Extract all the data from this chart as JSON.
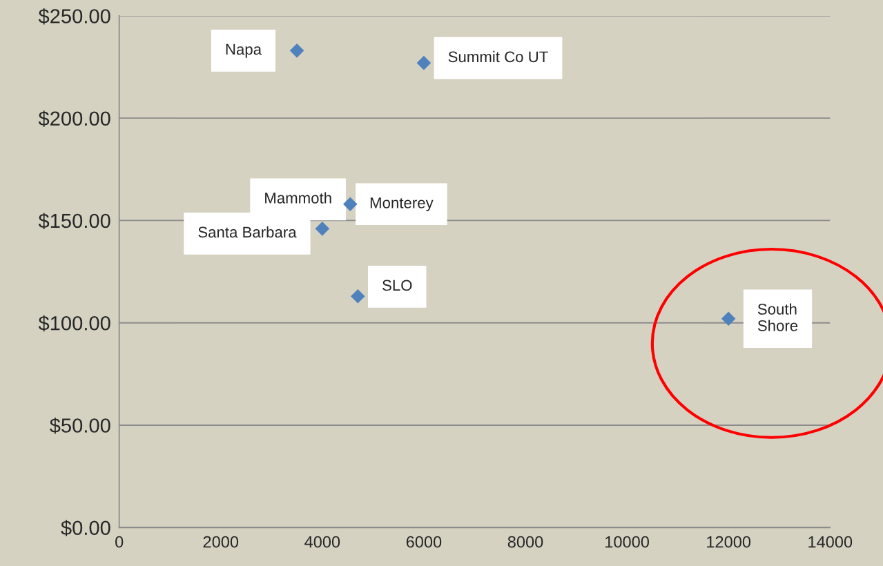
{
  "chart_data": {
    "type": "scatter",
    "x": [
      3500,
      6000,
      4550,
      4000,
      4700,
      12000
    ],
    "values": [
      233,
      227,
      158,
      146,
      113,
      102
    ],
    "color": "#4f81bd",
    "marker": "diamond",
    "xlim": [
      0,
      14000
    ],
    "xticks": [
      0,
      2000,
      4000,
      6000,
      8000,
      10000,
      12000,
      14000
    ],
    "ylim": [
      0,
      250
    ],
    "yticks": [
      {
        "value": 0,
        "label": "$0.00"
      },
      {
        "value": 50,
        "label": "$50.00"
      },
      {
        "value": 100,
        "label": "$100.00"
      },
      {
        "value": 150,
        "label": "$150.00"
      },
      {
        "value": 200,
        "label": "$200.00"
      },
      {
        "value": 250,
        "label": "$250.00"
      }
    ],
    "grid": "y",
    "annotations": [
      {
        "text": "Napa",
        "x": 3500,
        "y": 233
      },
      {
        "text": "Summit Co UT",
        "x": 6000,
        "y": 227
      },
      {
        "text": "Monterey",
        "x": 4550,
        "y": 158
      },
      {
        "text": "Mammoth",
        "x": 4550,
        "y": 158
      },
      {
        "text": "Santa Barbara",
        "x": 4000,
        "y": 146
      },
      {
        "text": "SLO",
        "x": 4700,
        "y": 113
      },
      {
        "text": "South\nShore",
        "x": 12000,
        "y": 102
      }
    ]
  }
}
